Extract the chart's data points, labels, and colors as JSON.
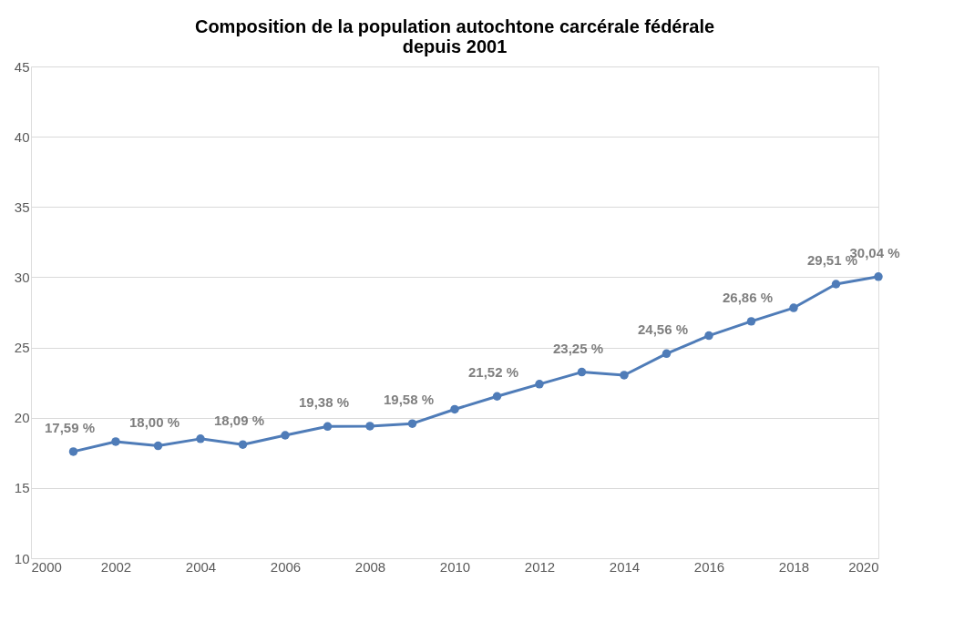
{
  "chart_data": {
    "type": "line",
    "title": [
      "Composition de la population autochtone carcérale fédérale",
      "depuis 2001"
    ],
    "x": [
      2001,
      2002,
      2003,
      2004,
      2005,
      2006,
      2007,
      2008,
      2009,
      2010,
      2011,
      2012,
      2013,
      2014,
      2015,
      2016,
      2017,
      2018,
      2019,
      2020
    ],
    "series": [
      {
        "color": "#4f7cb8",
        "values": [
          17.59,
          18.3,
          18.0,
          18.5,
          18.09,
          18.75,
          19.38,
          19.4,
          19.58,
          20.6,
          21.52,
          22.39,
          23.25,
          23.03,
          24.56,
          25.84,
          26.86,
          27.82,
          29.51,
          30.04
        ],
        "value_labels": [
          "17,59 %",
          null,
          "18,00 %",
          null,
          "18,09 %",
          null,
          "19,38 %",
          null,
          "19,58 %",
          null,
          "21,52 %",
          null,
          "23,25 %",
          null,
          "24,56 %",
          null,
          "26,86 %",
          null,
          "29,51 %",
          "30,04 %"
        ]
      }
    ],
    "xlim": [
      2000,
      2020
    ],
    "xticks": [
      2000,
      2002,
      2004,
      2006,
      2008,
      2010,
      2012,
      2014,
      2016,
      2018,
      2020
    ],
    "ylim": [
      10,
      45
    ],
    "yticks": [
      10,
      15,
      20,
      25,
      30,
      35,
      40,
      45
    ],
    "grid": "y",
    "marker": "circle",
    "line_style": "solid"
  }
}
